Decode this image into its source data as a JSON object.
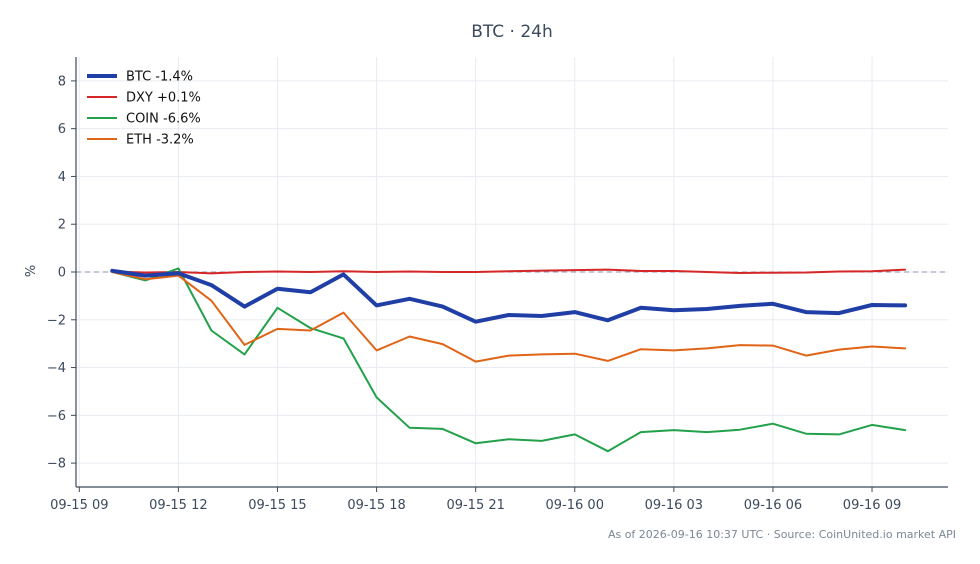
{
  "chart_data": {
    "type": "line",
    "title": "BTC · 24h",
    "xlabel": "",
    "ylabel": "%",
    "x_ticks": [
      "09-15 09",
      "09-15 12",
      "09-15 15",
      "09-15 18",
      "09-15 21",
      "09-16 00",
      "09-16 03",
      "09-16 06",
      "09-16 09"
    ],
    "x_tick_hours": [
      0,
      3,
      6,
      9,
      12,
      15,
      18,
      21,
      24
    ],
    "x_hours": [
      1,
      2,
      3,
      4,
      5,
      6,
      7,
      8,
      9,
      10,
      11,
      12,
      13,
      14,
      15,
      16,
      17,
      18,
      19,
      20,
      21,
      22,
      23,
      24,
      25
    ],
    "xlim_hours": [
      -0.1,
      26.3
    ],
    "ylim": [
      -9,
      9
    ],
    "y_ticks": [
      8,
      6,
      4,
      2,
      0,
      -2,
      -4,
      -6,
      -8
    ],
    "y_tick_labels": [
      "8",
      "6",
      "4",
      "2",
      "0",
      "−2",
      "−4",
      "−6",
      "−8"
    ],
    "grid": true,
    "zero_line": true,
    "legend_position": "top-left",
    "series": [
      {
        "name": "BTC -1.4%",
        "color": "#1f3fa6",
        "emphasis": true,
        "values": [
          0.05,
          -0.15,
          -0.05,
          -0.55,
          -1.45,
          -0.7,
          -0.85,
          -0.1,
          -1.4,
          -1.12,
          -1.45,
          -2.08,
          -1.8,
          -1.84,
          -1.68,
          -2.02,
          -1.5,
          -1.6,
          -1.55,
          -1.42,
          -1.33,
          -1.68,
          -1.72,
          -1.38,
          -1.4
        ]
      },
      {
        "name": "DXY +0.1%",
        "color": "#d62728",
        "values": [
          0.02,
          -0.02,
          0.0,
          -0.06,
          0.0,
          0.02,
          0.0,
          0.03,
          0.0,
          0.02,
          0.0,
          0.0,
          0.03,
          0.06,
          0.08,
          0.1,
          0.04,
          0.04,
          0.0,
          -0.04,
          -0.03,
          -0.02,
          0.02,
          0.03,
          0.1
        ]
      },
      {
        "name": "COIN -6.6%",
        "color": "#22a14a",
        "values": [
          0.0,
          -0.35,
          0.15,
          -2.45,
          -3.45,
          -1.5,
          -2.35,
          -2.78,
          -5.25,
          -6.52,
          -6.57,
          -7.17,
          -7.0,
          -7.07,
          -6.8,
          -7.5,
          -6.7,
          -6.62,
          -6.7,
          -6.6,
          -6.35,
          -6.77,
          -6.8,
          -6.4,
          -6.62
        ]
      },
      {
        "name": "ETH -3.2%",
        "color": "#e06416",
        "values": [
          0.0,
          -0.3,
          -0.15,
          -1.2,
          -3.05,
          -2.38,
          -2.45,
          -1.7,
          -3.28,
          -2.7,
          -3.02,
          -3.75,
          -3.5,
          -3.45,
          -3.42,
          -3.72,
          -3.23,
          -3.28,
          -3.2,
          -3.06,
          -3.08,
          -3.5,
          -3.25,
          -3.12,
          -3.2
        ]
      }
    ]
  },
  "footer": "As of 2026-09-16 10:37 UTC · Source: CoinUnited.io market API"
}
